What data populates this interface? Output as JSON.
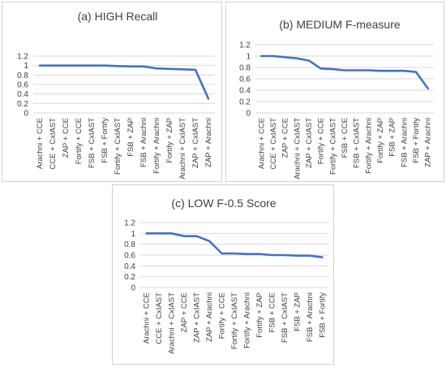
{
  "colors": {
    "line": "#4472C4",
    "grid": "#d9d9d9",
    "text": "#404040"
  },
  "chart_data": [
    {
      "type": "line",
      "title": "(a) HIGH Recall",
      "categories": [
        "Arachni + CCE",
        "CCE + CxIAST",
        "ZAP + CCE",
        "Fortify + CCE",
        "FSB + CxIAST",
        "FSB + Fortify",
        "Fortify + CxIAST",
        "FSB + ZAP",
        "FSB + Arachni",
        "Fortify + Arachni",
        "Fortify + ZAP",
        "Arachni + CxIAST",
        "ZAP + CxIAST",
        "ZAP + Arachni"
      ],
      "values": [
        1.0,
        1.0,
        1.0,
        1.0,
        1.0,
        1.0,
        0.99,
        0.98,
        0.98,
        0.94,
        0.93,
        0.92,
        0.91,
        0.3
      ],
      "ylim": [
        0,
        1.2
      ],
      "yticks": [
        "0",
        "0.2",
        "0.4",
        "0.6",
        "0.8",
        "1",
        "1.2"
      ],
      "grid": true
    },
    {
      "type": "line",
      "title": "(b) MEDIUM F-measure",
      "categories": [
        "Arachni + CCE",
        "CCE + CxIAST",
        "ZAP + CCE",
        "Arachni + CxIAST",
        "ZAP + CxIAST",
        "Fortify + CCE",
        "Fortify + CxIAST",
        "FSB + CCE",
        "FSB + CxIAST",
        "Fortify + Arachni",
        "Fortify + ZAP",
        "FSB + ZAP",
        "FSB + Arachni",
        "FSB + Fortify",
        "ZAP + Arachni"
      ],
      "values": [
        1.0,
        1.0,
        0.98,
        0.96,
        0.92,
        0.78,
        0.77,
        0.75,
        0.75,
        0.75,
        0.74,
        0.74,
        0.74,
        0.72,
        0.43
      ],
      "ylim": [
        0,
        1.2
      ],
      "yticks": [
        "0",
        "0.2",
        "0.4",
        "0.6",
        "0.8",
        "1",
        "1.2"
      ],
      "grid": true
    },
    {
      "type": "line",
      "title": "(c) LOW F-0.5 Score",
      "categories": [
        "Arachni + CCE",
        "CCE + CxIAST",
        "Arachni + CxIAST",
        "ZAP + CCE",
        "ZAP + CxIAST",
        "ZAP + Arachni",
        "Fortify + CCE",
        "Fortify + CxIAST",
        "Fortify + Arachni",
        "Fortify + ZAP",
        "FSB + CCE",
        "FSB + CxIAST",
        "FSB + ZAP",
        "FSB + Arachni",
        "FSB + Fortify"
      ],
      "values": [
        1.0,
        1.0,
        1.0,
        0.95,
        0.95,
        0.86,
        0.63,
        0.63,
        0.62,
        0.62,
        0.6,
        0.6,
        0.59,
        0.59,
        0.56
      ],
      "ylim": [
        0,
        1.2
      ],
      "yticks": [
        "0",
        "0.2",
        "0.4",
        "0.6",
        "0.8",
        "1",
        "1.2"
      ],
      "grid": true
    }
  ]
}
